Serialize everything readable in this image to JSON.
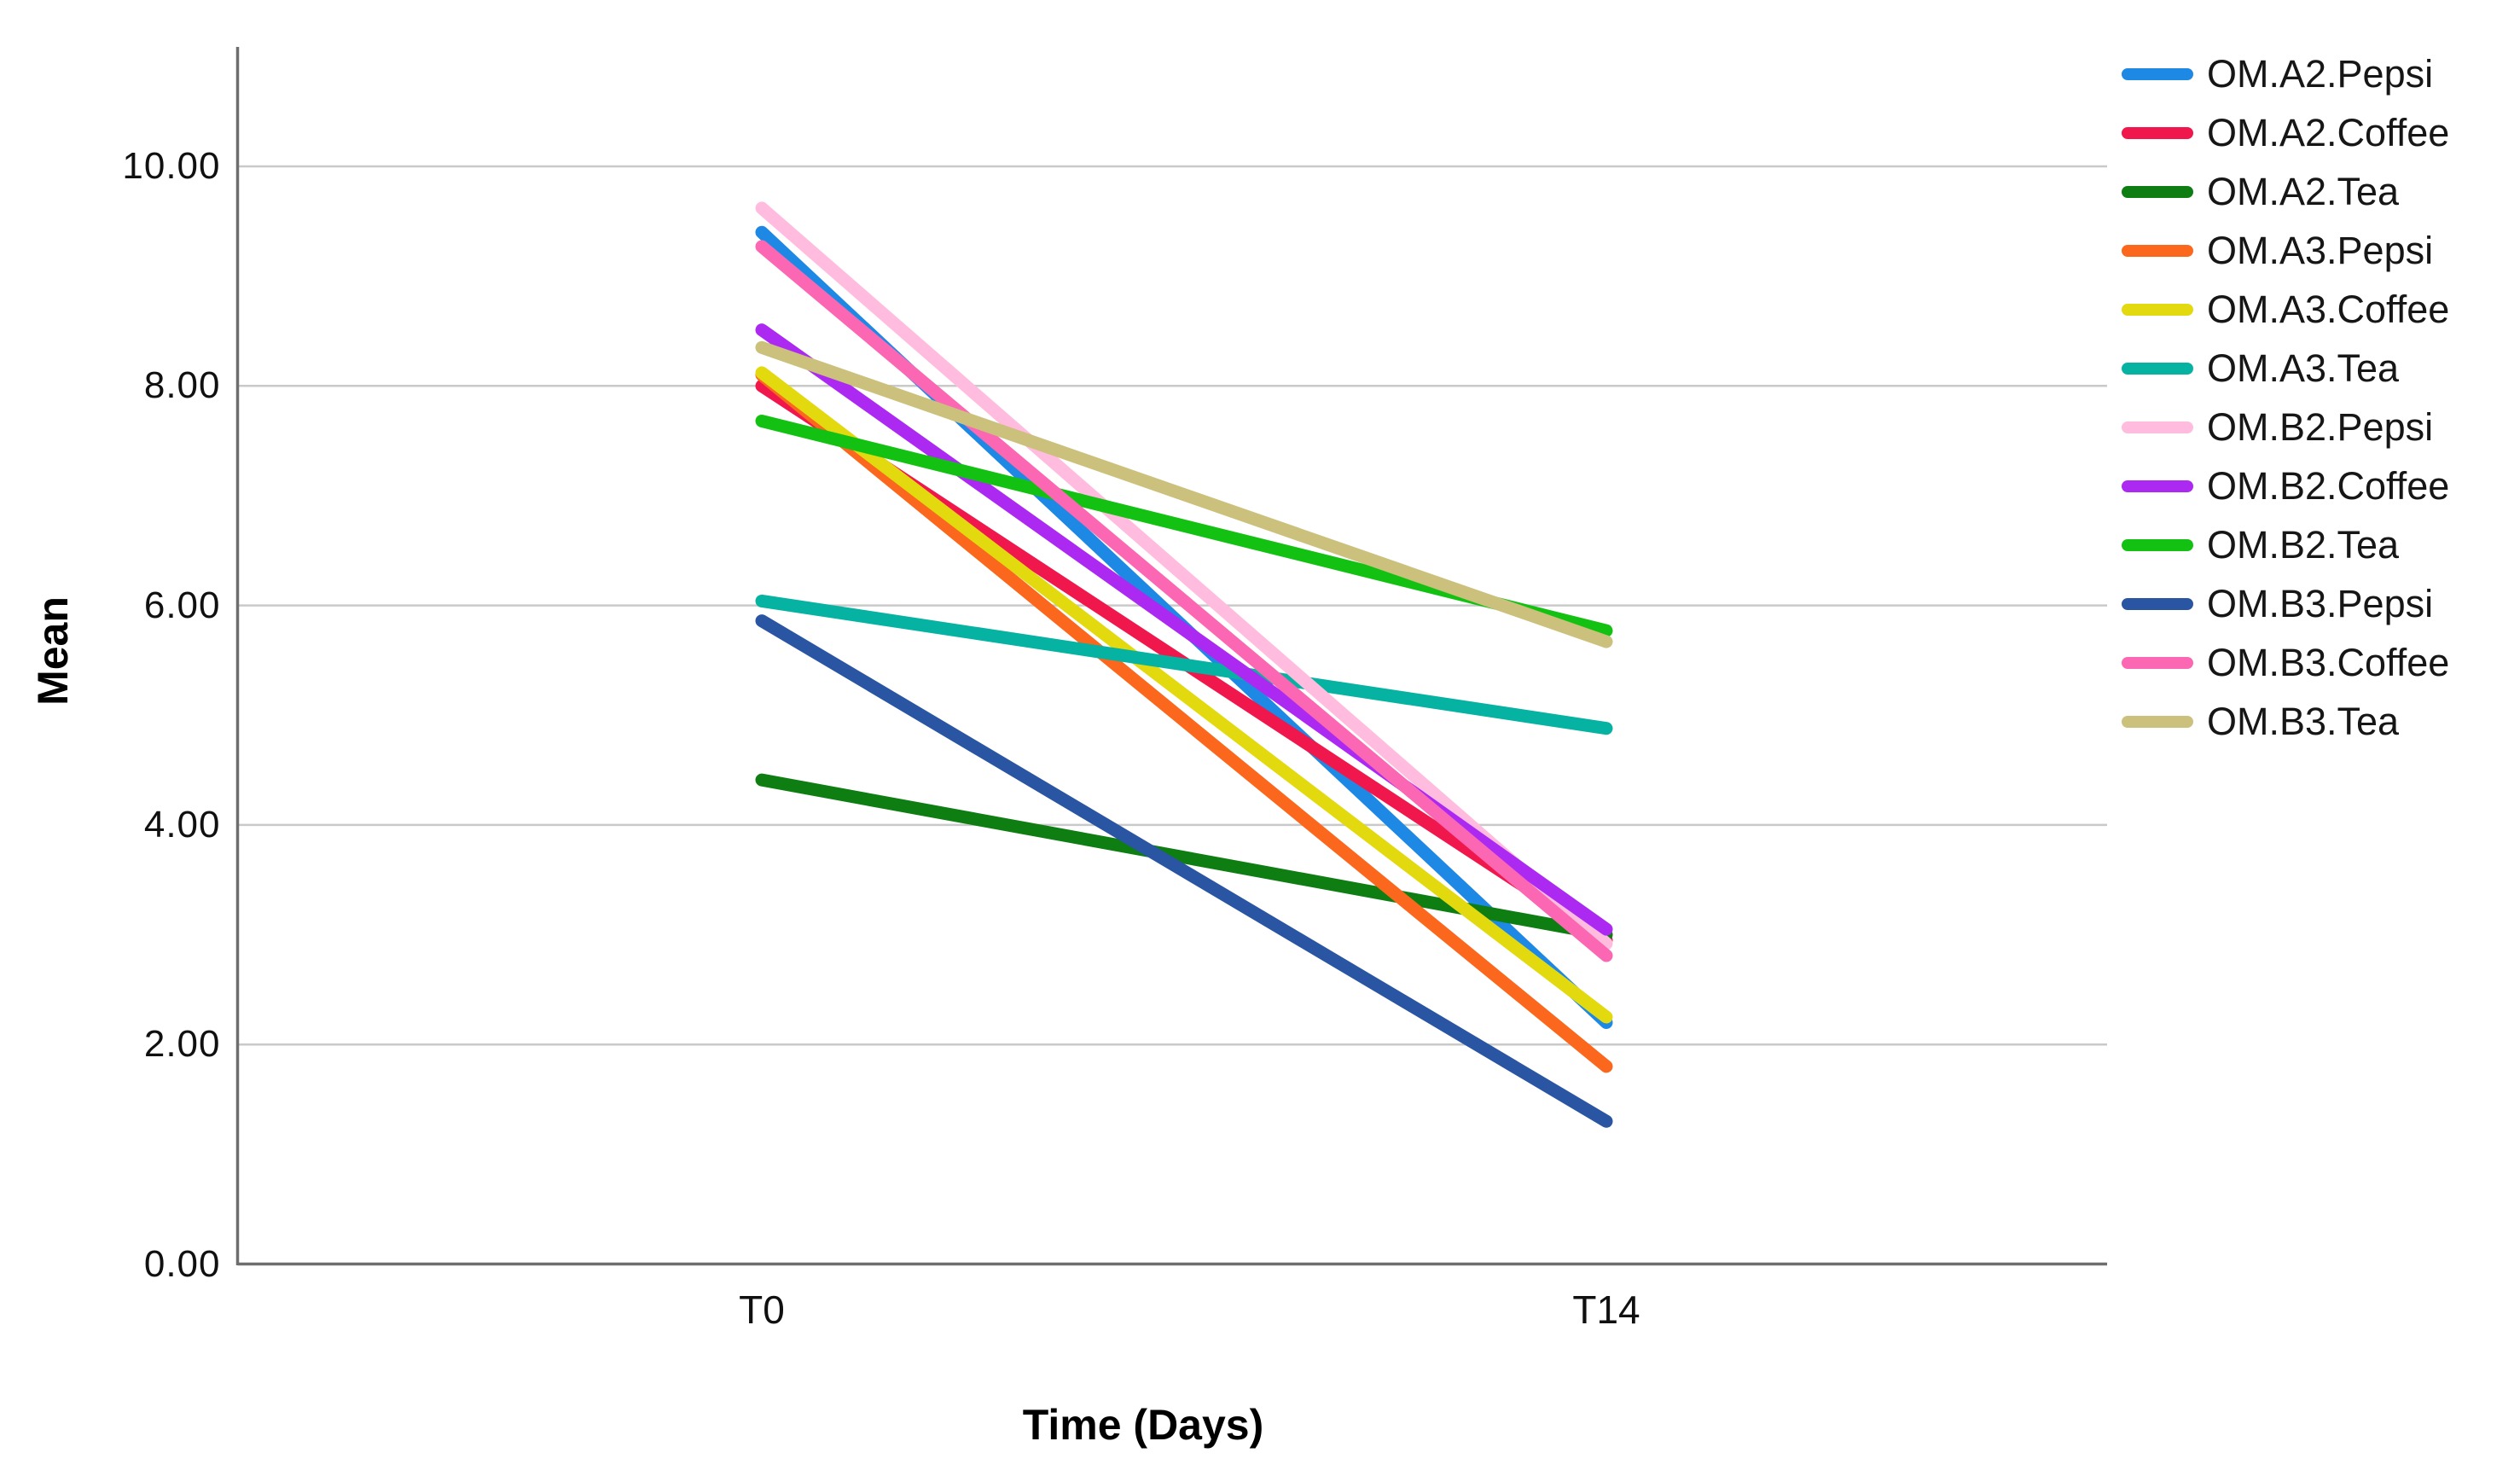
{
  "chart_data": {
    "type": "line",
    "title": "",
    "xlabel": "Time (Days)",
    "ylabel": "Mean",
    "x": [
      "T0",
      "T14"
    ],
    "ylim": [
      0,
      11.1
    ],
    "yticks": [
      {
        "value": 0,
        "label": "0.00"
      },
      {
        "value": 2,
        "label": "2.00"
      },
      {
        "value": 4,
        "label": "4.00"
      },
      {
        "value": 6,
        "label": "6.00"
      },
      {
        "value": 8,
        "label": "8.00"
      },
      {
        "value": 10,
        "label": "10.00"
      }
    ],
    "grid": "horizontal",
    "legend_position": "right",
    "series": [
      {
        "name": "OM.A2.Pepsi",
        "color": "#1E88E5",
        "values": [
          9.4,
          2.2
        ]
      },
      {
        "name": "OM.A2.Coffee",
        "color": "#F0174C",
        "values": [
          8.0,
          2.95
        ]
      },
      {
        "name": "OM.A2.Tea",
        "color": "#0E7D12",
        "values": [
          4.41,
          3.0
        ]
      },
      {
        "name": "OM.A3.Pepsi",
        "color": "#FB671C",
        "values": [
          8.1,
          1.8
        ]
      },
      {
        "name": "OM.A3.Coffee",
        "color": "#E3D90F",
        "values": [
          8.12,
          2.25
        ]
      },
      {
        "name": "OM.A3.Tea",
        "color": "#06B2A2",
        "values": [
          6.04,
          4.88
        ]
      },
      {
        "name": "OM.B2.Pepsi",
        "color": "#FFBCDE",
        "values": [
          9.62,
          2.92
        ]
      },
      {
        "name": "OM.B2.Coffee",
        "color": "#AC29F2",
        "values": [
          8.51,
          3.05
        ]
      },
      {
        "name": "OM.B2.Tea",
        "color": "#13C113",
        "values": [
          7.68,
          5.77
        ]
      },
      {
        "name": "OM.B3.Pepsi",
        "color": "#2A55A2",
        "values": [
          5.86,
          1.3
        ]
      },
      {
        "name": "OM.B3.Coffee",
        "color": "#FB67B2",
        "values": [
          9.27,
          2.81
        ]
      },
      {
        "name": "OM.B3.Tea",
        "color": "#CBC07C",
        "values": [
          8.35,
          5.67
        ]
      }
    ],
    "axis_color": "#6E6E6E",
    "gridline_color": "#C9C9C9",
    "line_width": 15
  }
}
